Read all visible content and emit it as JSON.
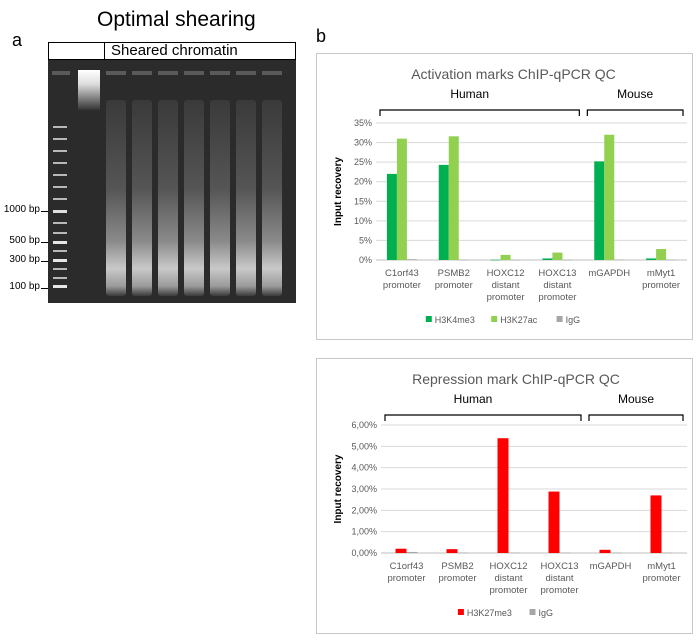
{
  "panel_a": {
    "letter": "a",
    "title": "Optimal shearing",
    "header_label": "Sheared chromatin",
    "ladder_labels": [
      "1000 bp",
      "500 bp",
      "300 bp",
      "100 bp"
    ]
  },
  "panel_b": {
    "letter": "b"
  },
  "chart_data": [
    {
      "type": "bar",
      "title": "Activation marks ChIP-qPCR QC",
      "ylabel": "Input recovery",
      "xlabel": "",
      "ylim": [
        0,
        35
      ],
      "yticks": [
        "0%",
        "5%",
        "10%",
        "15%",
        "20%",
        "25%",
        "30%",
        "35%"
      ],
      "groups": [
        {
          "label": "Human",
          "span": [
            0,
            3
          ]
        },
        {
          "label": "Mouse",
          "span": [
            4,
            5
          ]
        }
      ],
      "categories": [
        [
          "C1orf43",
          "promoter"
        ],
        [
          "PSMB2",
          "promoter"
        ],
        [
          "HOXC12",
          "distant",
          "promoter"
        ],
        [
          "HOXC13",
          "distant",
          "promoter"
        ],
        [
          "mGAPDH"
        ],
        [
          "mMyt1",
          "promoter"
        ]
      ],
      "series": [
        {
          "name": "H3K4me3",
          "color": "#00b050",
          "values": [
            22,
            24.3,
            0.05,
            0.4,
            25.2,
            0.4
          ]
        },
        {
          "name": "H3K27ac",
          "color": "#92d050",
          "values": [
            31,
            31.6,
            1.3,
            1.9,
            32,
            2.8
          ]
        },
        {
          "name": "IgG",
          "color": "#a6a6a6",
          "values": [
            0.2,
            0.1,
            0.03,
            0.05,
            0.1,
            0.1
          ]
        }
      ],
      "legend": "bottom",
      "grid": true
    },
    {
      "type": "bar",
      "title": "Repression mark ChIP-qPCR QC",
      "ylabel": "Input recovery",
      "xlabel": "",
      "ylim": [
        0,
        6
      ],
      "yticks": [
        "0,00%",
        "1,00%",
        "2,00%",
        "3,00%",
        "4,00%",
        "5,00%",
        "6,00%"
      ],
      "groups": [
        {
          "label": "Human",
          "span": [
            0,
            3
          ]
        },
        {
          "label": "Mouse",
          "span": [
            4,
            5
          ]
        }
      ],
      "categories": [
        [
          "C1orf43",
          "promoter"
        ],
        [
          "PSMB2",
          "promoter"
        ],
        [
          "HOXC12",
          "distant",
          "promoter"
        ],
        [
          "HOXC13",
          "distant",
          "promoter"
        ],
        [
          "mGAPDH"
        ],
        [
          "mMyt1",
          "promoter"
        ]
      ],
      "series": [
        {
          "name": "H3K27me3",
          "color": "#ff0000",
          "values": [
            0.2,
            0.18,
            5.38,
            2.88,
            0.15,
            2.7
          ]
        },
        {
          "name": "IgG",
          "color": "#a6a6a6",
          "values": [
            0.05,
            0.02,
            0.02,
            0.02,
            0.02,
            0.02
          ]
        }
      ],
      "legend": "bottom",
      "grid": true
    }
  ]
}
